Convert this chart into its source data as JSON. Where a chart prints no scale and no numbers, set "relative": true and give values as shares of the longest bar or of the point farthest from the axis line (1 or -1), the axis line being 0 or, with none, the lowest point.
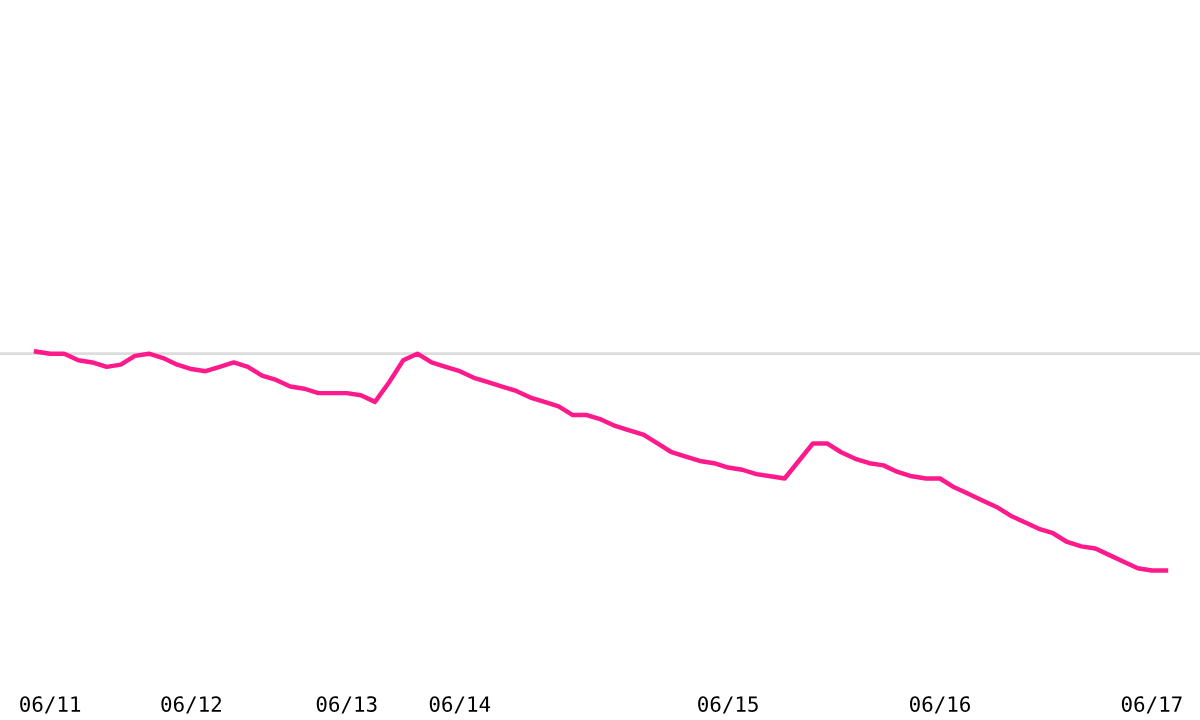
{
  "chart_data": {
    "type": "line",
    "relative": true,
    "grid": false,
    "legend": false,
    "marker": "none",
    "line_style": "solid",
    "categories": [
      null,
      "06/11",
      null,
      null,
      null,
      null,
      null,
      null,
      null,
      null,
      null,
      "06/12",
      null,
      null,
      null,
      null,
      null,
      null,
      null,
      null,
      null,
      null,
      "06/13",
      null,
      null,
      null,
      null,
      null,
      null,
      null,
      "06/14",
      null,
      null,
      null,
      null,
      null,
      null,
      null,
      null,
      null,
      null,
      null,
      null,
      null,
      null,
      null,
      null,
      null,
      null,
      "06/15",
      null,
      null,
      null,
      null,
      null,
      null,
      null,
      null,
      null,
      null,
      null,
      null,
      null,
      null,
      "06/16",
      null,
      null,
      null,
      null,
      null,
      null,
      null,
      null,
      null,
      null,
      null,
      null,
      null,
      null,
      "06/17",
      null
    ],
    "series": [
      {
        "color": "#ff1a8c",
        "values": [
          1.0,
          0.99,
          0.99,
          0.96,
          0.95,
          0.93,
          0.94,
          0.98,
          0.99,
          0.97,
          0.94,
          0.92,
          0.91,
          0.93,
          0.95,
          0.93,
          0.89,
          0.87,
          0.84,
          0.83,
          0.81,
          0.81,
          0.81,
          0.8,
          0.77,
          0.86,
          0.96,
          0.99,
          0.95,
          0.93,
          0.91,
          0.88,
          0.86,
          0.84,
          0.82,
          0.79,
          0.77,
          0.75,
          0.71,
          0.71,
          0.69,
          0.66,
          0.64,
          0.62,
          0.58,
          0.54,
          0.52,
          0.5,
          0.49,
          0.47,
          0.46,
          0.44,
          0.43,
          0.42,
          0.5,
          0.58,
          0.58,
          0.54,
          0.51,
          0.49,
          0.48,
          0.45,
          0.43,
          0.42,
          0.42,
          0.38,
          0.35,
          0.32,
          0.29,
          0.25,
          0.22,
          0.19,
          0.17,
          0.13,
          0.11,
          0.1,
          0.07,
          0.04,
          0.01,
          0,
          0
        ]
      }
    ],
    "ref_lines": [
      {
        "axis": "y",
        "value": 0.99,
        "color": "#dddddd",
        "line_style": "solid"
      }
    ]
  }
}
